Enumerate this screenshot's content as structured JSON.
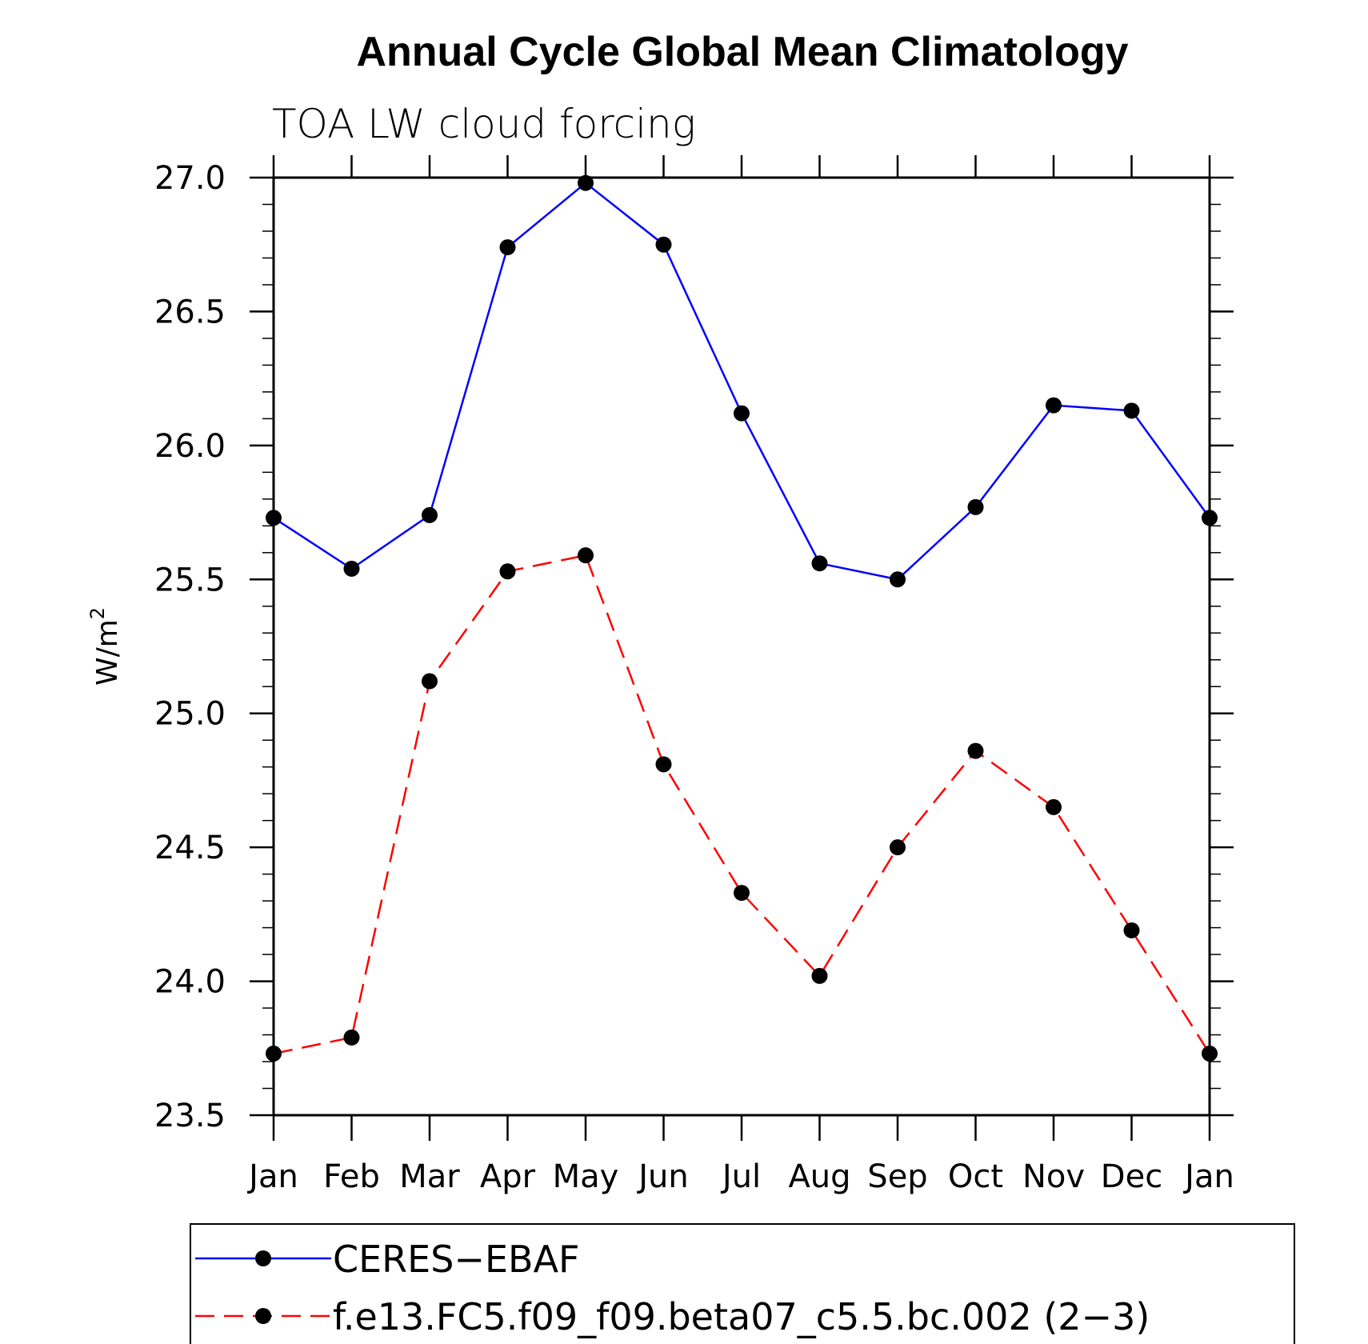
{
  "chart_data": {
    "type": "line",
    "title": "Annual Cycle Global Mean Climatology",
    "subtitle": "TOA LW cloud forcing",
    "xlabel": "",
    "ylabel": "W/m",
    "ylabel_superscript": "2",
    "categories": [
      "Jan",
      "Feb",
      "Mar",
      "Apr",
      "May",
      "Jun",
      "Jul",
      "Aug",
      "Sep",
      "Oct",
      "Nov",
      "Dec",
      "Jan"
    ],
    "ylim": [
      23.5,
      27.0
    ],
    "yticks": [
      23.5,
      24.0,
      24.5,
      25.0,
      25.5,
      26.0,
      26.5,
      27.0
    ],
    "ytick_labels": [
      "23.5",
      "24.0",
      "24.5",
      "25.0",
      "25.5",
      "26.0",
      "26.5",
      "27.0"
    ],
    "grid": false,
    "legend_position": "bottom",
    "series": [
      {
        "name": "CERES−EBAF",
        "color": "#0000ff",
        "line_style": "solid",
        "marker": "filled-circle",
        "values": [
          25.73,
          25.54,
          25.74,
          26.74,
          26.98,
          26.75,
          26.12,
          25.56,
          25.5,
          25.77,
          26.15,
          26.13,
          25.73
        ]
      },
      {
        "name": "f.e13.FC5.f09_f09.beta07_c5.5.bc.002 (2−3)",
        "color": "#ff0000",
        "line_style": "dashed",
        "marker": "filled-circle",
        "values": [
          23.73,
          23.79,
          25.12,
          25.53,
          25.59,
          24.81,
          24.33,
          24.02,
          24.5,
          24.86,
          24.65,
          24.19,
          23.73
        ]
      }
    ]
  }
}
